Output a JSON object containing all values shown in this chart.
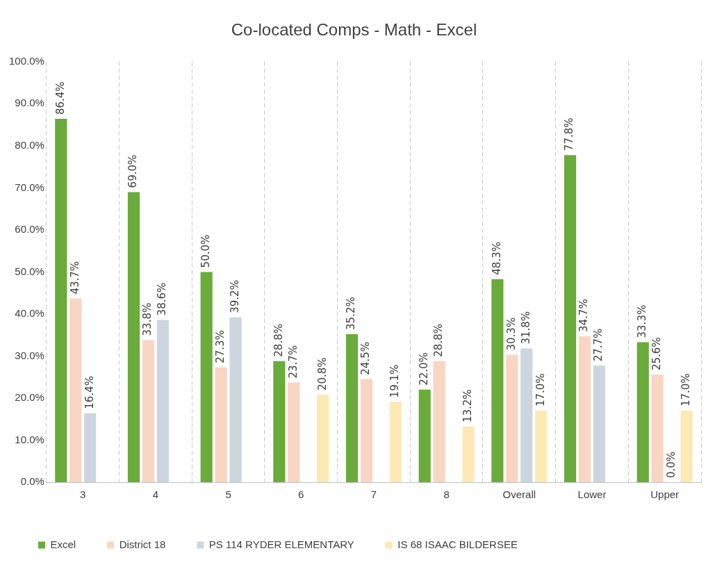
{
  "chart_data": {
    "type": "bar",
    "title": "Co-located Comps - Math - Excel",
    "categories": [
      "3",
      "4",
      "5",
      "6",
      "7",
      "8",
      "Overall",
      "Lower",
      "Upper"
    ],
    "series": [
      {
        "name": "Excel",
        "color": "#6aab3c",
        "values": [
          86.4,
          69.0,
          50.0,
          28.8,
          35.2,
          22.0,
          48.3,
          77.8,
          33.3
        ],
        "value_labels": [
          "86.4%",
          "69.0%",
          "50.0%",
          "28.8%",
          "35.2%",
          "22.0%",
          "48.3%",
          "77.8%",
          "33.3%"
        ]
      },
      {
        "name": "District 18",
        "color": "#f9d5c4",
        "values": [
          43.7,
          33.8,
          27.3,
          23.7,
          24.5,
          28.8,
          30.3,
          34.7,
          25.6
        ],
        "value_labels": [
          "43.7%",
          "33.8%",
          "27.3%",
          "23.7%",
          "24.5%",
          "28.8%",
          "30.3%",
          "34.7%",
          "25.6%"
        ]
      },
      {
        "name": "PS 114 RYDER ELEMENTARY",
        "color": "#cdd5df",
        "values": [
          16.4,
          38.6,
          39.2,
          null,
          null,
          null,
          31.8,
          27.7,
          0.0
        ],
        "value_labels": [
          "16.4%",
          "38.6%",
          "39.2%",
          null,
          null,
          null,
          "31.8%",
          "27.7%",
          "0.0%"
        ]
      },
      {
        "name": "IS 68 ISAAC BILDERSEE",
        "color": "#fce9b4",
        "values": [
          null,
          null,
          null,
          20.8,
          19.1,
          13.2,
          17.0,
          null,
          17.0
        ],
        "value_labels": [
          null,
          null,
          null,
          "20.8%",
          "19.1%",
          "13.2%",
          "17.0%",
          null,
          "17.0%"
        ]
      }
    ],
    "ylim": [
      0,
      100
    ],
    "yticks": [
      {
        "value": 0,
        "label": "0.0%"
      },
      {
        "value": 10,
        "label": "10.0%"
      },
      {
        "value": 20,
        "label": "20.0%"
      },
      {
        "value": 30,
        "label": "30.0%"
      },
      {
        "value": 40,
        "label": "40.0%"
      },
      {
        "value": 50,
        "label": "50.0%"
      },
      {
        "value": 60,
        "label": "60.0%"
      },
      {
        "value": 70,
        "label": "70.0%"
      },
      {
        "value": 80,
        "label": "80.0%"
      },
      {
        "value": 90,
        "label": "90.0%"
      },
      {
        "value": 100,
        "label": "100.0%"
      }
    ],
    "grid": "x",
    "legend": "bottom left"
  }
}
